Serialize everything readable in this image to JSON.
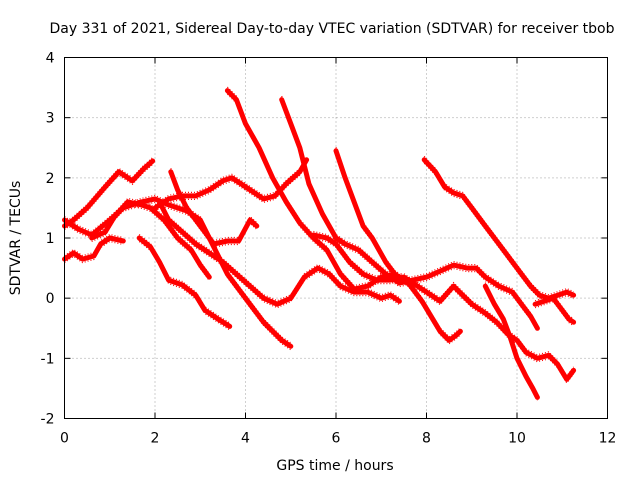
{
  "chart_data": {
    "type": "line",
    "title": "Day 331 of 2021, Sidereal Day-to-day VTEC variation (SDTVAR) for receiver tbob",
    "xlabel": "GPS time / hours",
    "ylabel": "SDTVAR / TECUs",
    "xlim": [
      0,
      12
    ],
    "ylim": [
      -2,
      4
    ],
    "xticks": [
      0,
      2,
      4,
      6,
      8,
      10,
      12
    ],
    "yticks": [
      -2,
      -1,
      0,
      1,
      2,
      3,
      4
    ],
    "grid": true,
    "marker": "plus",
    "color": "#ff0000",
    "series": [
      {
        "name": "s1",
        "points": [
          [
            0.0,
            1.2
          ],
          [
            0.2,
            1.3
          ],
          [
            0.5,
            1.5
          ],
          [
            0.9,
            1.85
          ],
          [
            1.2,
            2.1
          ],
          [
            1.5,
            1.95
          ],
          [
            1.75,
            2.15
          ],
          [
            1.95,
            2.28
          ]
        ]
      },
      {
        "name": "s2",
        "points": [
          [
            0.0,
            1.3
          ],
          [
            0.3,
            1.15
          ],
          [
            0.6,
            1.05
          ],
          [
            1.0,
            1.3
          ],
          [
            1.3,
            1.5
          ],
          [
            1.7,
            1.6
          ],
          [
            2.0,
            1.65
          ],
          [
            2.3,
            1.55
          ],
          [
            2.7,
            1.45
          ],
          [
            3.0,
            1.3
          ],
          [
            3.2,
            1.0
          ],
          [
            3.4,
            0.7
          ],
          [
            3.6,
            0.4
          ],
          [
            3.8,
            0.2
          ],
          [
            4.1,
            -0.1
          ],
          [
            4.4,
            -0.4
          ],
          [
            4.8,
            -0.7
          ],
          [
            5.0,
            -0.8
          ]
        ]
      },
      {
        "name": "s3",
        "points": [
          [
            0.0,
            0.65
          ],
          [
            0.2,
            0.75
          ],
          [
            0.4,
            0.65
          ],
          [
            0.65,
            0.7
          ],
          [
            0.8,
            0.9
          ],
          [
            1.0,
            1.0
          ],
          [
            1.3,
            0.95
          ]
        ]
      },
      {
        "name": "s4",
        "points": [
          [
            0.6,
            1.0
          ],
          [
            0.9,
            1.1
          ],
          [
            1.1,
            1.35
          ],
          [
            1.4,
            1.6
          ],
          [
            1.7,
            1.55
          ],
          [
            1.9,
            1.5
          ],
          [
            2.2,
            1.3
          ],
          [
            2.5,
            1.0
          ],
          [
            2.8,
            0.8
          ],
          [
            3.0,
            0.55
          ],
          [
            3.2,
            0.35
          ]
        ]
      },
      {
        "name": "s5",
        "points": [
          [
            1.65,
            1.0
          ],
          [
            1.9,
            0.85
          ],
          [
            2.1,
            0.6
          ],
          [
            2.3,
            0.3
          ],
          [
            2.6,
            0.22
          ],
          [
            2.9,
            0.05
          ],
          [
            3.1,
            -0.2
          ],
          [
            3.4,
            -0.35
          ],
          [
            3.65,
            -0.47
          ]
        ]
      },
      {
        "name": "s6",
        "points": [
          [
            2.0,
            1.5
          ],
          [
            2.3,
            1.65
          ],
          [
            2.6,
            1.7
          ],
          [
            2.9,
            1.7
          ],
          [
            3.2,
            1.8
          ],
          [
            3.5,
            1.95
          ],
          [
            3.7,
            2.0
          ],
          [
            3.9,
            1.9
          ],
          [
            4.2,
            1.75
          ],
          [
            4.4,
            1.65
          ],
          [
            4.65,
            1.7
          ],
          [
            4.9,
            1.9
          ],
          [
            5.2,
            2.1
          ],
          [
            5.35,
            2.3
          ]
        ]
      },
      {
        "name": "s7",
        "points": [
          [
            2.35,
            2.1
          ],
          [
            2.5,
            1.8
          ],
          [
            2.7,
            1.5
          ],
          [
            3.0,
            1.2
          ],
          [
            3.3,
            0.9
          ],
          [
            3.6,
            0.95
          ],
          [
            3.85,
            0.95
          ],
          [
            4.1,
            1.3
          ],
          [
            4.25,
            1.2
          ]
        ]
      },
      {
        "name": "s8",
        "points": [
          [
            2.1,
            1.6
          ],
          [
            2.3,
            1.3
          ],
          [
            2.6,
            1.1
          ],
          [
            2.9,
            0.9
          ],
          [
            3.2,
            0.75
          ],
          [
            3.5,
            0.6
          ],
          [
            3.8,
            0.4
          ],
          [
            4.1,
            0.2
          ],
          [
            4.4,
            0.0
          ],
          [
            4.7,
            -0.1
          ],
          [
            5.0,
            0.0
          ],
          [
            5.3,
            0.35
          ],
          [
            5.6,
            0.5
          ],
          [
            5.85,
            0.4
          ],
          [
            6.1,
            0.2
          ],
          [
            6.4,
            0.1
          ],
          [
            6.7,
            0.1
          ],
          [
            7.0,
            0.0
          ],
          [
            7.2,
            0.05
          ],
          [
            7.4,
            -0.05
          ]
        ]
      },
      {
        "name": "s9",
        "points": [
          [
            3.6,
            3.45
          ],
          [
            3.8,
            3.3
          ],
          [
            4.0,
            2.9
          ],
          [
            4.3,
            2.5
          ],
          [
            4.6,
            2.0
          ],
          [
            4.9,
            1.6
          ],
          [
            5.2,
            1.25
          ],
          [
            5.5,
            1.0
          ],
          [
            5.8,
            0.8
          ],
          [
            6.1,
            0.4
          ],
          [
            6.4,
            0.15
          ],
          [
            6.7,
            0.2
          ],
          [
            7.0,
            0.35
          ],
          [
            7.3,
            0.4
          ],
          [
            7.6,
            0.25
          ],
          [
            7.9,
            -0.05
          ],
          [
            8.1,
            -0.3
          ],
          [
            8.3,
            -0.55
          ],
          [
            8.5,
            -0.7
          ],
          [
            8.65,
            -0.62
          ],
          [
            8.75,
            -0.55
          ]
        ]
      },
      {
        "name": "s10",
        "points": [
          [
            4.8,
            3.3
          ],
          [
            5.0,
            2.9
          ],
          [
            5.2,
            2.5
          ],
          [
            5.4,
            1.9
          ],
          [
            5.7,
            1.4
          ],
          [
            6.0,
            1.0
          ],
          [
            6.2,
            0.9
          ],
          [
            6.5,
            0.8
          ],
          [
            6.8,
            0.6
          ],
          [
            7.1,
            0.4
          ],
          [
            7.4,
            0.25
          ],
          [
            7.7,
            0.3
          ],
          [
            8.0,
            0.35
          ],
          [
            8.3,
            0.45
          ],
          [
            8.6,
            0.55
          ],
          [
            8.9,
            0.5
          ],
          [
            9.1,
            0.5
          ],
          [
            9.3,
            0.35
          ],
          [
            9.6,
            0.2
          ],
          [
            9.9,
            0.1
          ],
          [
            10.1,
            -0.1
          ],
          [
            10.3,
            -0.3
          ],
          [
            10.45,
            -0.5
          ]
        ]
      },
      {
        "name": "s11",
        "points": [
          [
            6.0,
            2.45
          ],
          [
            6.2,
            2.0
          ],
          [
            6.4,
            1.6
          ],
          [
            6.6,
            1.2
          ],
          [
            6.8,
            1.0
          ],
          [
            7.1,
            0.6
          ],
          [
            7.4,
            0.3
          ]
        ]
      },
      {
        "name": "s12",
        "points": [
          [
            5.5,
            1.05
          ],
          [
            5.8,
            1.0
          ],
          [
            6.0,
            0.9
          ],
          [
            6.3,
            0.6
          ],
          [
            6.6,
            0.4
          ],
          [
            6.9,
            0.3
          ],
          [
            7.2,
            0.3
          ],
          [
            7.5,
            0.35
          ],
          [
            7.8,
            0.2
          ],
          [
            8.0,
            0.1
          ],
          [
            8.3,
            -0.05
          ],
          [
            8.6,
            0.2
          ],
          [
            8.8,
            0.05
          ],
          [
            9.0,
            -0.1
          ],
          [
            9.3,
            -0.25
          ],
          [
            9.55,
            -0.4
          ],
          [
            9.8,
            -0.6
          ],
          [
            10.0,
            -0.7
          ],
          [
            10.2,
            -0.9
          ],
          [
            10.45,
            -1.0
          ],
          [
            10.7,
            -0.95
          ],
          [
            10.9,
            -1.1
          ],
          [
            11.1,
            -1.35
          ],
          [
            11.25,
            -1.2
          ]
        ]
      },
      {
        "name": "s13",
        "points": [
          [
            7.95,
            2.3
          ],
          [
            8.2,
            2.1
          ],
          [
            8.4,
            1.85
          ],
          [
            8.6,
            1.75
          ],
          [
            8.8,
            1.7
          ],
          [
            9.0,
            1.5
          ],
          [
            9.3,
            1.2
          ],
          [
            9.6,
            0.9
          ],
          [
            9.9,
            0.6
          ],
          [
            10.1,
            0.4
          ],
          [
            10.3,
            0.2
          ],
          [
            10.5,
            0.05
          ],
          [
            10.7,
            0.0
          ],
          [
            10.9,
            0.05
          ],
          [
            11.1,
            0.1
          ],
          [
            11.25,
            0.05
          ]
        ]
      },
      {
        "name": "s14",
        "points": [
          [
            9.3,
            0.2
          ],
          [
            9.5,
            -0.1
          ],
          [
            9.7,
            -0.35
          ],
          [
            9.85,
            -0.65
          ],
          [
            10.0,
            -1.0
          ],
          [
            10.2,
            -1.3
          ],
          [
            10.35,
            -1.5
          ],
          [
            10.45,
            -1.65
          ]
        ]
      },
      {
        "name": "s15",
        "points": [
          [
            10.4,
            -0.1
          ],
          [
            10.6,
            -0.05
          ],
          [
            10.8,
            0.0
          ],
          [
            11.0,
            -0.2
          ],
          [
            11.15,
            -0.35
          ],
          [
            11.25,
            -0.4
          ]
        ]
      }
    ]
  }
}
